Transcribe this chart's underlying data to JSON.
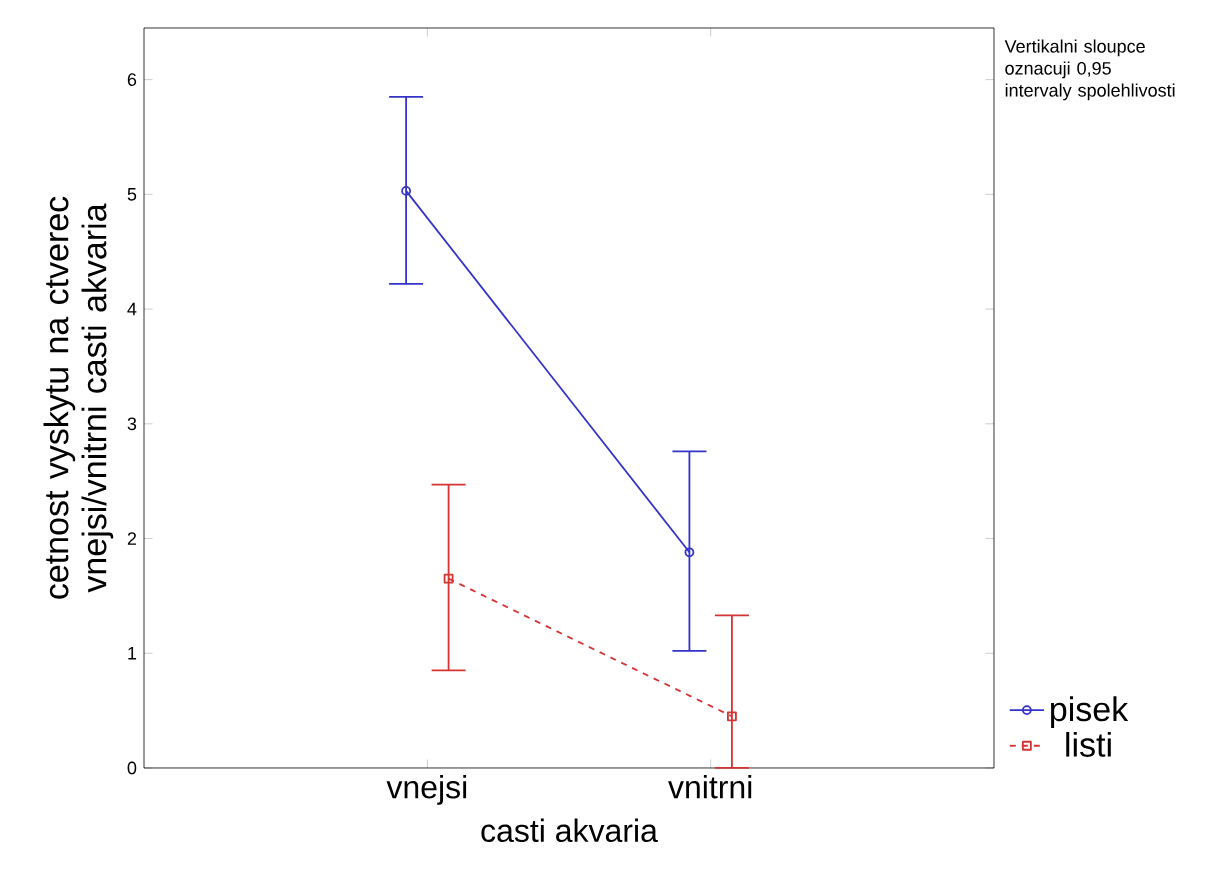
{
  "chart_data": {
    "type": "line",
    "xlabel": "casti akvaria",
    "ylabel": "cetnost vyskytu na ctverec vnejsi/vnitrni casti akvaria",
    "categories": [
      "vnejsi",
      "vnitrni"
    ],
    "series": [
      {
        "name": "pisek",
        "color": "#3333cc",
        "values": [
          5.03,
          1.88
        ],
        "errors": [
          [
            4.22,
            5.85
          ],
          [
            1.02,
            2.76
          ]
        ],
        "marker": "circle",
        "line_style": "solid"
      },
      {
        "name": "listi",
        "color": "#d63333",
        "values": [
          1.65,
          0.45
        ],
        "errors": [
          [
            0.85,
            2.47
          ],
          [
            0,
            1.33
          ]
        ],
        "marker": "square",
        "line_style": "dashed"
      }
    ],
    "ylim": [
      0,
      6.45
    ],
    "yticks": [
      0,
      1,
      2,
      3,
      4,
      5,
      6
    ],
    "legend": "bottom right",
    "grid": false,
    "annotations": [
      "Vertikalni sloupce oznacuji 0,95 intervaly spolehlivosti"
    ]
  }
}
